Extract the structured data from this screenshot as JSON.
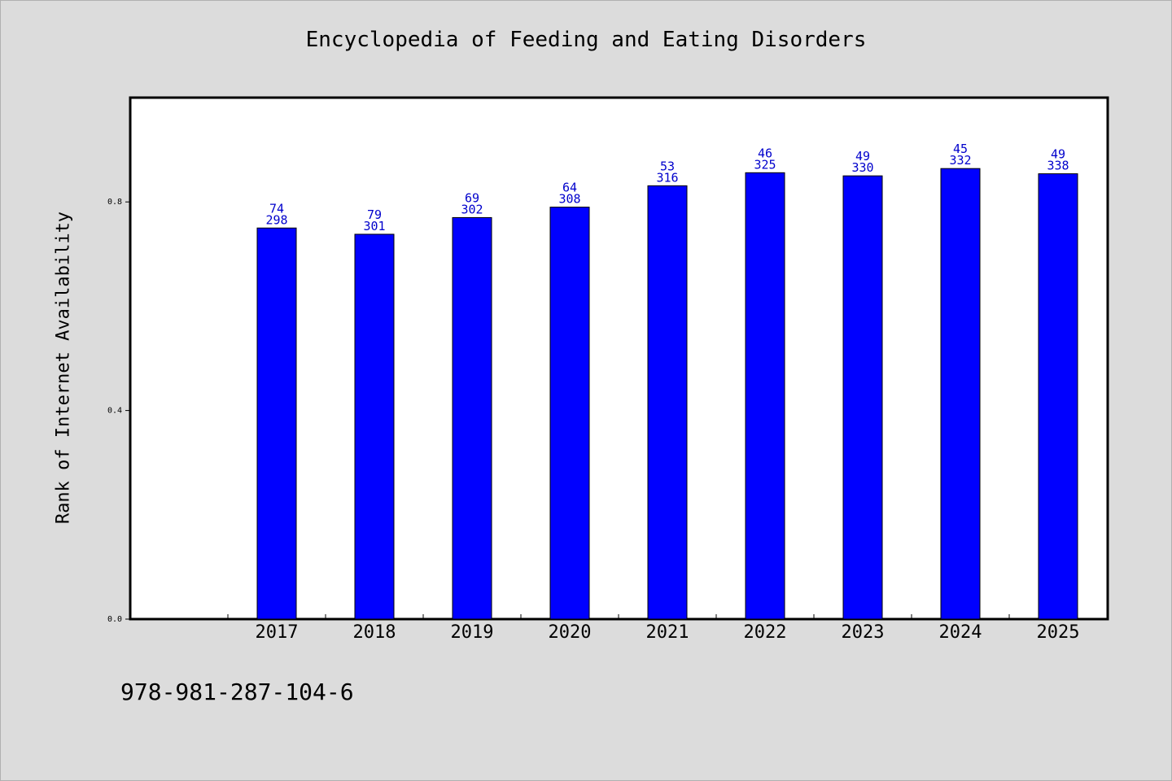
{
  "chart_data": {
    "type": "bar",
    "title": "Encyclopedia of Feeding and Eating Disorders",
    "ylabel": "Rank of Internet Availability",
    "xlabel": "",
    "categories": [
      "2017",
      "2018",
      "2019",
      "2020",
      "2021",
      "2022",
      "2023",
      "2024",
      "2025"
    ],
    "values": [
      0.75,
      0.738,
      0.77,
      0.79,
      0.831,
      0.856,
      0.85,
      0.864,
      0.854
    ],
    "label_top": [
      "74",
      "79",
      "69",
      "64",
      "53",
      "46",
      "49",
      "45",
      "49"
    ],
    "label_bottom": [
      "298",
      "301",
      "302",
      "308",
      "316",
      "325",
      "330",
      "332",
      "338"
    ],
    "ylim": [
      0,
      1.0
    ],
    "yticks": [
      "0.0",
      "0.4",
      "0.8"
    ],
    "ytick_values": [
      0,
      0.4,
      0.8
    ],
    "grid": false,
    "bar_color": "#0000ff",
    "label_color": "#0000cc"
  },
  "footer": {
    "code": "978-981-287-104-6"
  }
}
